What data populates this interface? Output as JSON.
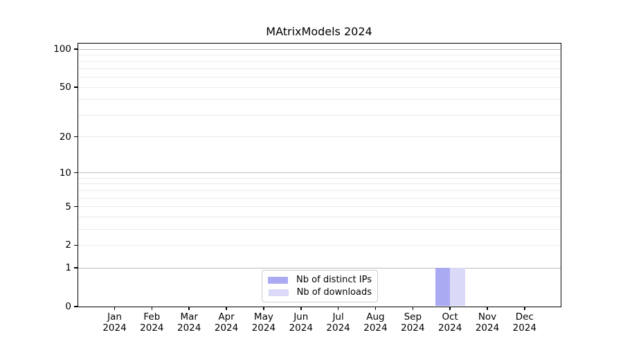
{
  "chart_data": {
    "type": "bar",
    "title": "MAtrixModels 2024",
    "categories": [
      "Jan 2024",
      "Feb 2024",
      "Mar 2024",
      "Apr 2024",
      "May 2024",
      "Jun 2024",
      "Jul 2024",
      "Aug 2024",
      "Sep 2024",
      "Oct 2024",
      "Nov 2024",
      "Dec 2024"
    ],
    "series": [
      {
        "name": "Nb of distinct IPs",
        "color": "#aaaaf3",
        "values": [
          0,
          0,
          0,
          0,
          0,
          0,
          0,
          0,
          0,
          1,
          0,
          0
        ]
      },
      {
        "name": "Nb of downloads",
        "color": "#dadaf8",
        "values": [
          0,
          0,
          0,
          0,
          0,
          0,
          0,
          0,
          0,
          1,
          0,
          0
        ]
      }
    ],
    "xlabel": "",
    "ylabel": "",
    "y_scale": "log1p",
    "ylim": [
      0,
      112
    ],
    "y_ticks": [
      0,
      1,
      2,
      5,
      10,
      20,
      50,
      100
    ],
    "y_major_gridlines": [
      1,
      10,
      100
    ],
    "y_minor_gridlines": [
      2,
      3,
      4,
      5,
      6,
      7,
      8,
      9,
      20,
      30,
      40,
      50,
      60,
      70,
      80,
      90
    ],
    "grid": "on",
    "legend_position": "lower center",
    "colors": {
      "major_grid": "#bcbcbc",
      "minor_grid": "#ebebeb",
      "spine": "#000000",
      "background": "#ffffff"
    }
  }
}
